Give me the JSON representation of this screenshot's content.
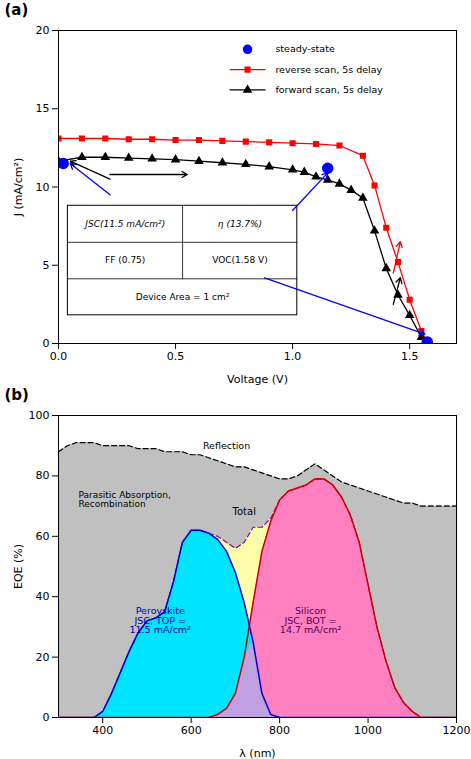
{
  "chart_data": [
    {
      "type": "line",
      "title": "(a)",
      "xlabel": "Voltage (V)",
      "ylabel": "J (mA/cm²)",
      "xlim": [
        0,
        1.7
      ],
      "ylim": [
        0,
        20
      ],
      "xticks": [
        {
          "value": 0.0,
          "label": "0.0"
        },
        0.5,
        {
          "value": 1.0,
          "label": "1.0"
        },
        1.5
      ],
      "yticks": [
        0,
        5,
        10,
        15,
        20
      ],
      "legend": "upper right",
      "series": [
        {
          "name": "steady-state",
          "type": "scatter",
          "color": "#0000ff",
          "marker": "circle",
          "x": [
            0.02,
            1.15,
            1.575
          ],
          "values": [
            11.5,
            11.2,
            0.1
          ]
        },
        {
          "name": "reverse scan, 5s delay",
          "type": "line",
          "color": "#ff0000",
          "marker": "square",
          "line_style": "solid",
          "x": [
            0.0,
            0.1,
            0.2,
            0.3,
            0.4,
            0.5,
            0.6,
            0.7,
            0.8,
            0.9,
            1.0,
            1.1,
            1.2,
            1.3,
            1.35,
            1.4,
            1.45,
            1.5,
            1.55,
            1.575
          ],
          "values": [
            13.1,
            13.1,
            13.1,
            13.05,
            13.05,
            13.0,
            13.0,
            12.95,
            12.9,
            12.85,
            12.8,
            12.75,
            12.65,
            12.0,
            10.1,
            7.4,
            5.2,
            2.8,
            0.8,
            0.1
          ]
        },
        {
          "name": "forward scan, 5s delay",
          "type": "line",
          "color": "#000000",
          "marker": "triangle",
          "line_style": "solid",
          "x": [
            0.0,
            0.1,
            0.2,
            0.3,
            0.4,
            0.5,
            0.6,
            0.7,
            0.8,
            0.9,
            1.0,
            1.05,
            1.1,
            1.15,
            1.2,
            1.25,
            1.3,
            1.35,
            1.4,
            1.45,
            1.5,
            1.55,
            1.575
          ],
          "values": [
            11.65,
            11.9,
            11.9,
            11.85,
            11.8,
            11.75,
            11.65,
            11.55,
            11.45,
            11.3,
            11.1,
            10.95,
            10.65,
            10.45,
            10.2,
            9.8,
            9.3,
            7.2,
            4.8,
            3.1,
            1.8,
            0.4,
            0.05
          ]
        }
      ],
      "annotations": [
        "JSC(11.5 mA/cm²)",
        "η (13.7%)",
        "FF (0.75)",
        "VOC(1.58 V)",
        "Device Area = 1 cm²"
      ]
    },
    {
      "type": "area",
      "title": "(b)",
      "xlabel": "λ (nm)",
      "ylabel": "EQE (%)",
      "xlim": [
        300,
        1200
      ],
      "ylim": [
        0,
        100
      ],
      "xticks": [
        400,
        600,
        800,
        1000,
        1200
      ],
      "yticks": [
        0,
        20,
        40,
        60,
        80,
        100
      ],
      "x": [
        300,
        320,
        340,
        360,
        380,
        400,
        420,
        440,
        460,
        480,
        500,
        520,
        540,
        560,
        580,
        600,
        620,
        640,
        660,
        680,
        700,
        720,
        740,
        760,
        780,
        800,
        820,
        840,
        860,
        880,
        900,
        920,
        940,
        960,
        980,
        1000,
        1020,
        1040,
        1060,
        1080,
        1100,
        1120,
        1140,
        1160,
        1180,
        1200
      ],
      "series": [
        {
          "type": "area",
          "color": "#c0c0c0",
          "values": [
            88,
            90,
            91,
            91,
            91,
            90,
            90,
            90,
            90,
            89,
            89,
            89,
            88,
            88,
            88,
            87,
            87,
            86,
            85,
            84,
            83,
            83,
            82,
            81,
            80,
            79,
            79,
            80,
            82,
            84,
            82,
            80,
            78,
            77,
            76,
            75,
            74,
            73,
            72,
            71,
            71,
            70,
            70,
            70,
            70,
            70
          ]
        },
        {
          "type": "area",
          "color": "#ffffaa",
          "lower": [
            0,
            0,
            0,
            0,
            0,
            2,
            8,
            15,
            22,
            28,
            32,
            33,
            35,
            45,
            58,
            62,
            62,
            61,
            59,
            55,
            48,
            38,
            25,
            8,
            1,
            0,
            0,
            0,
            0,
            0,
            0,
            0,
            0,
            0,
            0,
            0,
            0,
            0,
            0,
            0,
            0,
            0,
            0,
            0,
            0,
            0
          ],
          "values": [
            0,
            0,
            0,
            0,
            0,
            2,
            8,
            15,
            22,
            28,
            32,
            33,
            35,
            45,
            58,
            62,
            62,
            61,
            60,
            58,
            56,
            58,
            63,
            63,
            66,
            72,
            75,
            76,
            77,
            79,
            79,
            77,
            73,
            67,
            58,
            44,
            30,
            19,
            10,
            5,
            2,
            0,
            0,
            0,
            0,
            0
          ]
        },
        {
          "type": "area",
          "color": "#ff80c0",
          "values": [
            0,
            0,
            0,
            0,
            0,
            0,
            0,
            0,
            0,
            0,
            0,
            0,
            0,
            0,
            0,
            0,
            0,
            0,
            1,
            3,
            8,
            20,
            38,
            55,
            65,
            72,
            75,
            76,
            77,
            79,
            79,
            77,
            73,
            67,
            58,
            44,
            30,
            19,
            10,
            5,
            2,
            0,
            0,
            0,
            0,
            0
          ]
        },
        {
          "type": "area",
          "color": "#00e5ff",
          "values": [
            0,
            0,
            0,
            0,
            0,
            2,
            8,
            15,
            22,
            28,
            32,
            33,
            35,
            45,
            58,
            62,
            62,
            61,
            59,
            55,
            48,
            38,
            25,
            8,
            1,
            0,
            0,
            0,
            0,
            0,
            0,
            0,
            0,
            0,
            0,
            0,
            0,
            0,
            0,
            0,
            0,
            0,
            0,
            0,
            0,
            0
          ]
        },
        {
          "type": "area",
          "color": "#c0a0e0",
          "values": [
            0,
            0,
            0,
            0,
            0,
            0,
            0,
            0,
            0,
            0,
            0,
            0,
            0,
            0,
            0,
            0,
            0,
            0,
            1,
            3,
            8,
            20,
            25,
            8,
            1,
            0,
            0,
            0,
            0,
            0,
            0,
            0,
            0,
            0,
            0,
            0,
            0,
            0,
            0,
            0,
            0,
            0,
            0,
            0,
            0,
            0
          ]
        },
        {
          "type": "line",
          "color": "#000000",
          "line_style": "dashed",
          "values": [
            88,
            90,
            91,
            91,
            91,
            90,
            90,
            90,
            90,
            89,
            89,
            89,
            88,
            88,
            88,
            87,
            87,
            86,
            85,
            84,
            83,
            83,
            82,
            81,
            80,
            79,
            79,
            80,
            82,
            84,
            82,
            80,
            78,
            77,
            76,
            75,
            74,
            73,
            72,
            71,
            71,
            70,
            70,
            70,
            70,
            70
          ]
        },
        {
          "type": "line",
          "color": "#8B008B",
          "line_style": "dashed",
          "values": [
            0,
            0,
            0,
            0,
            0,
            2,
            8,
            15,
            22,
            28,
            32,
            33,
            35,
            45,
            58,
            62,
            62,
            61,
            60,
            58,
            56,
            58,
            63,
            63,
            66,
            72,
            75,
            76,
            77,
            79,
            79,
            77,
            73,
            67,
            58,
            44,
            30,
            19,
            10,
            5,
            2,
            0,
            0,
            0,
            0,
            0
          ]
        },
        {
          "type": "line",
          "color": "#0000cc",
          "line_style": "solid",
          "values": [
            0,
            0,
            0,
            0,
            0,
            2,
            8,
            15,
            22,
            28,
            32,
            33,
            35,
            45,
            58,
            62,
            62,
            61,
            59,
            55,
            48,
            38,
            25,
            8,
            1,
            0,
            0,
            0,
            0,
            0,
            0,
            0,
            0,
            0,
            0,
            0,
            0,
            0,
            0,
            0,
            0,
            0,
            0,
            0,
            0,
            0
          ]
        },
        {
          "type": "line",
          "color": "#cc0000",
          "line_style": "solid",
          "values": [
            0,
            0,
            0,
            0,
            0,
            0,
            0,
            0,
            0,
            0,
            0,
            0,
            0,
            0,
            0,
            0,
            0,
            0,
            1,
            3,
            8,
            20,
            38,
            55,
            65,
            72,
            75,
            76,
            77,
            79,
            79,
            77,
            73,
            67,
            58,
            44,
            30,
            19,
            10,
            5,
            2,
            0,
            0,
            0,
            0,
            0
          ]
        }
      ],
      "annotations": [
        {
          "text": "Reflection",
          "color": "black"
        },
        {
          "text": "Parasitic Absorption,\nRecombination"
        },
        {
          "text": "Total",
          "color": "black"
        },
        {
          "text": "Perovskite\nJSC, TOP =\n11.5 mA/cm²",
          "color": "#0000aa"
        },
        {
          "text": "Silicon\nJSC, BOT =\n14.7 mA/cm²",
          "color": "#550055"
        }
      ]
    }
  ]
}
